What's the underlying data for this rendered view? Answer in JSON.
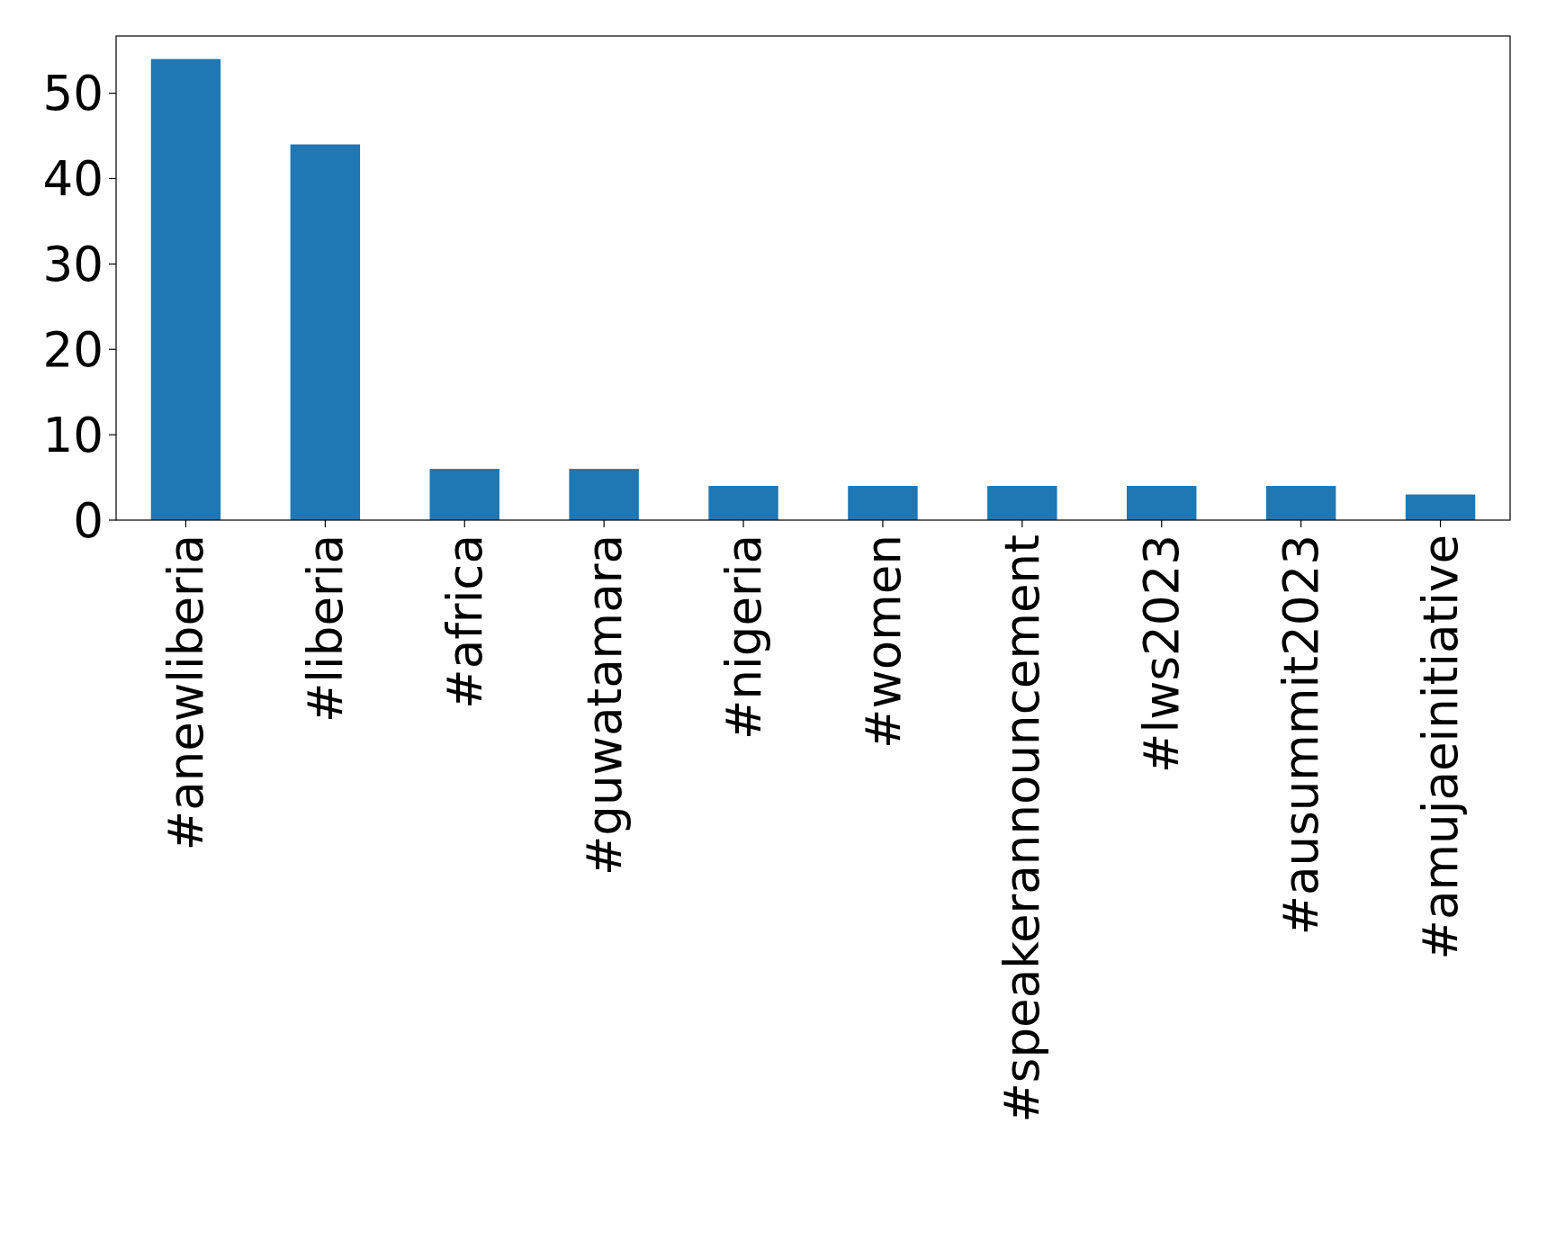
{
  "chart_data": {
    "type": "bar",
    "categories": [
      "#anewliberia",
      "#liberia",
      "#africa",
      "#guwatamara",
      "#nigeria",
      "#women",
      "#speakerannouncement",
      "#lws2023",
      "#ausummit2023",
      "#amujaeinitiative"
    ],
    "values": [
      54,
      44,
      6,
      6,
      4,
      4,
      4,
      4,
      4,
      3
    ],
    "color": "#1f77b4",
    "ylim": [
      0,
      56.7
    ],
    "yticks": [
      0,
      10,
      20,
      30,
      40,
      50
    ]
  }
}
